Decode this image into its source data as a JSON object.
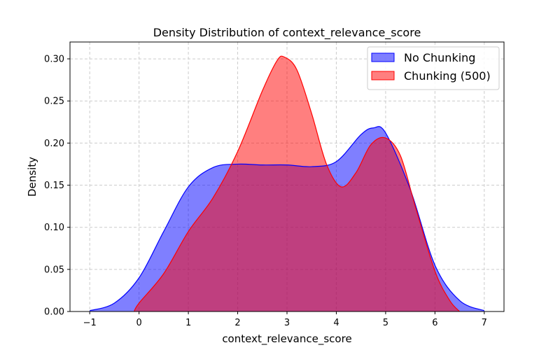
{
  "chart_data": {
    "type": "area",
    "title": "Density Distribution of context_relevance_score",
    "xlabel": "context_relevance_score",
    "ylabel": "Density",
    "xlim": [
      -1.4,
      7.4
    ],
    "ylim": [
      0,
      0.32
    ],
    "xticks": [
      -1,
      0,
      1,
      2,
      3,
      4,
      5,
      6,
      7
    ],
    "xtick_labels": [
      "−1",
      "0",
      "1",
      "2",
      "3",
      "4",
      "5",
      "6",
      "7"
    ],
    "yticks": [
      0,
      0.05,
      0.1,
      0.15,
      0.2,
      0.25,
      0.3
    ],
    "ytick_labels": [
      "0.00",
      "0.05",
      "0.10",
      "0.15",
      "0.20",
      "0.25",
      "0.30"
    ],
    "grid": true,
    "legend_position": "top-right",
    "series": [
      {
        "name": "No Chunking",
        "color": "#0000ff",
        "points": [
          [
            -1.0,
            0.001
          ],
          [
            -0.5,
            0.01
          ],
          [
            0.0,
            0.04
          ],
          [
            0.5,
            0.095
          ],
          [
            1.0,
            0.148
          ],
          [
            1.5,
            0.171
          ],
          [
            2.0,
            0.175
          ],
          [
            2.5,
            0.174
          ],
          [
            3.0,
            0.174
          ],
          [
            3.5,
            0.172
          ],
          [
            4.0,
            0.178
          ],
          [
            4.5,
            0.21
          ],
          [
            4.75,
            0.218
          ],
          [
            5.0,
            0.212
          ],
          [
            5.5,
            0.145
          ],
          [
            6.0,
            0.055
          ],
          [
            6.5,
            0.013
          ],
          [
            7.0,
            0.001
          ]
        ]
      },
      {
        "name": "Chunking (500)",
        "color": "#ff0000",
        "points": [
          [
            -0.1,
            0.0
          ],
          [
            0.0,
            0.01
          ],
          [
            0.5,
            0.045
          ],
          [
            1.0,
            0.095
          ],
          [
            1.5,
            0.135
          ],
          [
            2.0,
            0.19
          ],
          [
            2.5,
            0.262
          ],
          [
            2.8,
            0.298
          ],
          [
            2.95,
            0.302
          ],
          [
            3.2,
            0.287
          ],
          [
            3.5,
            0.235
          ],
          [
            3.8,
            0.175
          ],
          [
            4.1,
            0.148
          ],
          [
            4.4,
            0.165
          ],
          [
            4.7,
            0.198
          ],
          [
            5.0,
            0.206
          ],
          [
            5.3,
            0.185
          ],
          [
            5.6,
            0.125
          ],
          [
            6.0,
            0.048
          ],
          [
            6.3,
            0.013
          ],
          [
            6.5,
            0.0
          ]
        ]
      }
    ]
  }
}
